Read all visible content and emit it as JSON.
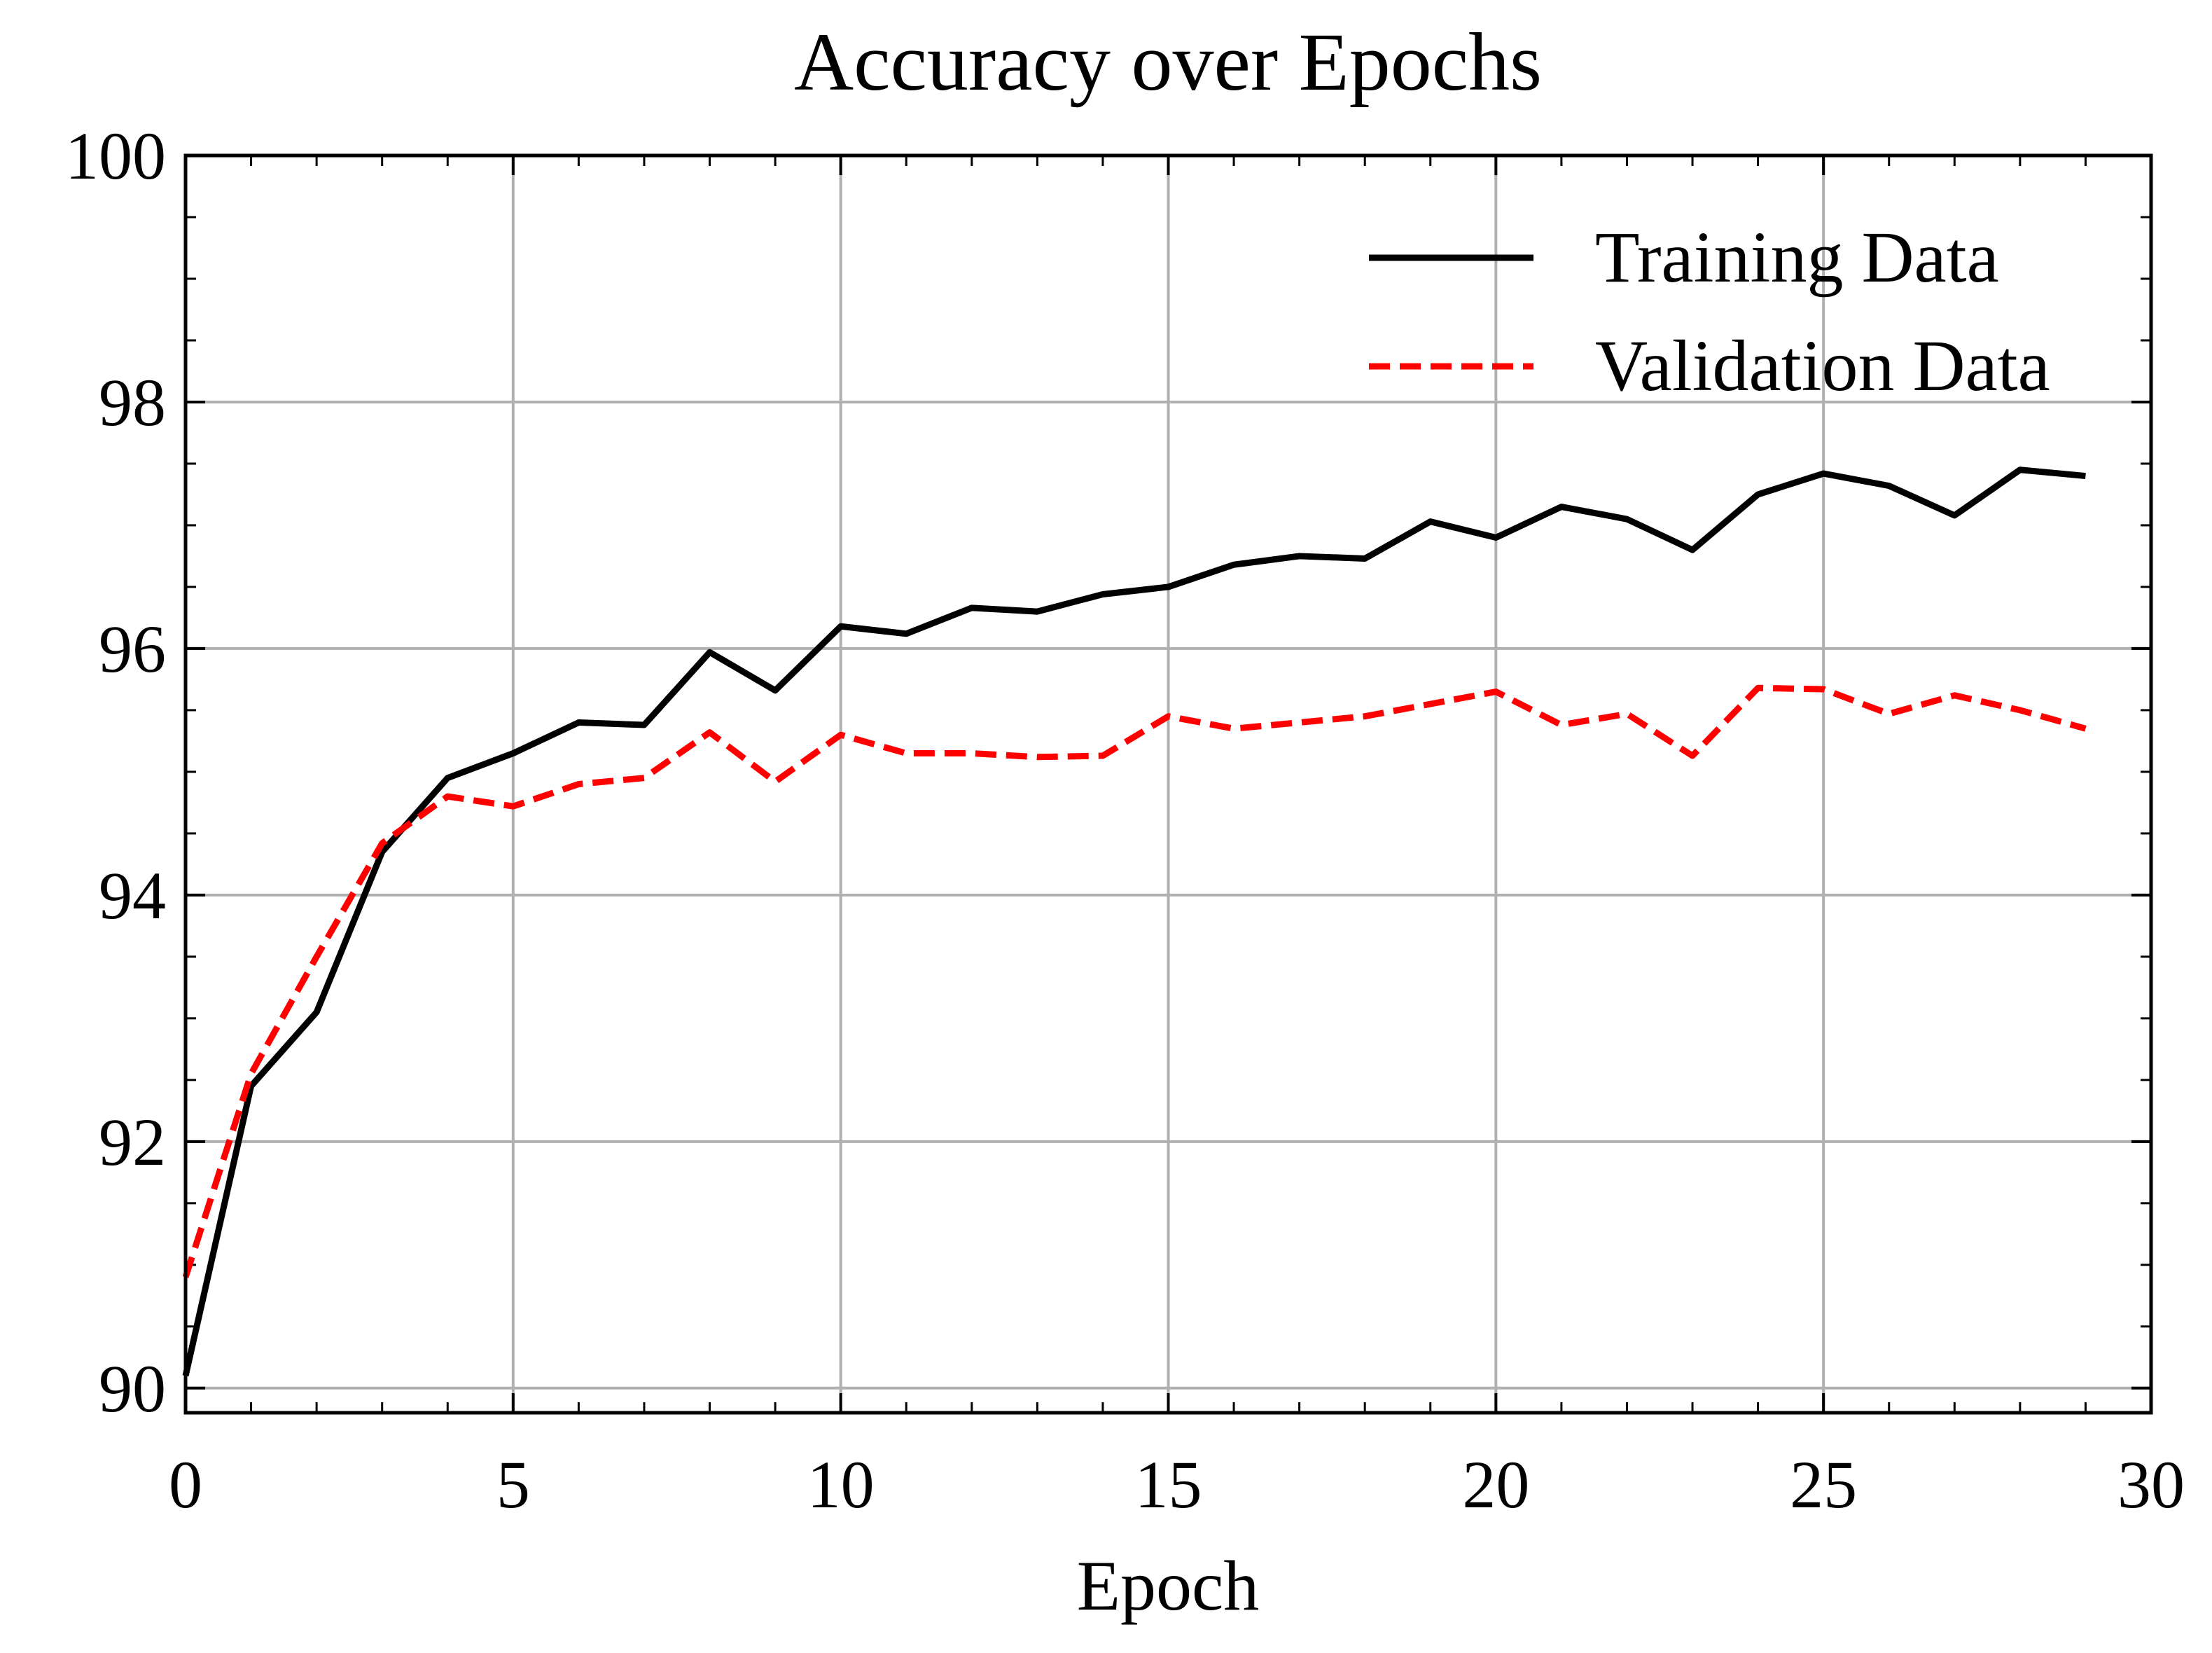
{
  "chart_data": {
    "type": "line",
    "title": "Accuracy over Epochs",
    "xlabel": "Epoch",
    "ylabel": "",
    "xlim": [
      0,
      30
    ],
    "ylim": [
      89.8,
      100
    ],
    "xticks": [
      0,
      5,
      10,
      15,
      20,
      25,
      30
    ],
    "yticks": [
      90,
      92,
      94,
      96,
      98,
      100
    ],
    "xtick_labels": [
      "0",
      "5",
      "10",
      "15",
      "20",
      "25",
      "30"
    ],
    "ytick_labels": [
      "90",
      "92",
      "94",
      "96",
      "98",
      "100"
    ],
    "grid": true,
    "legend_position": "top-right",
    "x": [
      0,
      1,
      2,
      3,
      4,
      5,
      6,
      7,
      8,
      9,
      10,
      11,
      12,
      13,
      14,
      15,
      16,
      17,
      18,
      19,
      20,
      21,
      22,
      23,
      24,
      25,
      26,
      27,
      28,
      29
    ],
    "series": [
      {
        "name": "Training Data",
        "color": "#000000",
        "style": "solid",
        "values": [
          90.1,
          92.45,
          93.05,
          94.35,
          94.95,
          95.15,
          95.4,
          95.38,
          95.97,
          95.66,
          96.18,
          96.12,
          96.33,
          96.3,
          96.44,
          96.5,
          96.68,
          96.75,
          96.73,
          97.03,
          96.9,
          97.15,
          97.05,
          96.8,
          97.25,
          97.42,
          97.32,
          97.08,
          97.45,
          97.4
        ]
      },
      {
        "name": "Validation Data",
        "color": "#ff0000",
        "style": "dashed",
        "values": [
          90.9,
          92.55,
          93.5,
          94.42,
          94.8,
          94.72,
          94.9,
          94.95,
          95.32,
          94.92,
          95.3,
          95.15,
          95.15,
          95.12,
          95.13,
          95.45,
          95.35,
          95.4,
          95.45,
          95.55,
          95.65,
          95.38,
          95.47,
          95.13,
          95.68,
          95.67,
          95.47,
          95.62,
          95.5,
          95.35
        ]
      }
    ]
  }
}
